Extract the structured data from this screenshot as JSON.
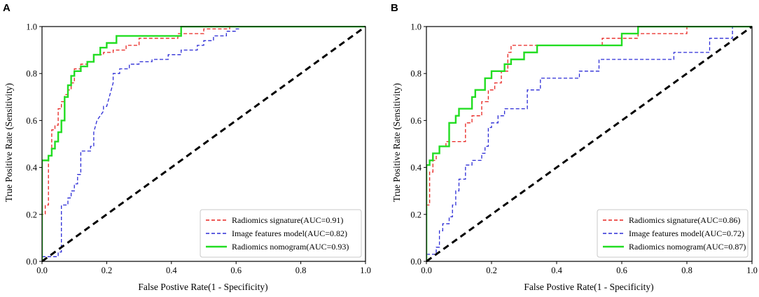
{
  "chart_data": [
    {
      "panel": "A",
      "type": "line",
      "xlabel": "False Postive Rate(1 - Specificity)",
      "ylabel": "True Positive Rate (Sensitivity)",
      "xlim": [
        0,
        1
      ],
      "ylim": [
        0,
        1
      ],
      "xticks": [
        "0.0",
        "0.2",
        "0.4",
        "0.6",
        "0.8",
        "1.0"
      ],
      "yticks": [
        "0.0",
        "0.2",
        "0.4",
        "0.6",
        "0.8",
        "1.0"
      ],
      "legend_position": "lower-right",
      "series": [
        {
          "name": "Radiomics signature(AUC=0.91)",
          "color": "#e8231f",
          "style": "dashed",
          "x": [
            0,
            0,
            0.01,
            0.01,
            0.02,
            0.02,
            0.03,
            0.03,
            0.04,
            0.04,
            0.05,
            0.05,
            0.06,
            0.06,
            0.07,
            0.07,
            0.08,
            0.08,
            0.09,
            0.09,
            0.1,
            0.1,
            0.12,
            0.12,
            0.14,
            0.14,
            0.16,
            0.16,
            0.19,
            0.19,
            0.22,
            0.22,
            0.26,
            0.26,
            0.3,
            0.3,
            0.42,
            0.42,
            0.5,
            0.5,
            0.58,
            0.58,
            1.0
          ],
          "y": [
            0,
            0.2,
            0.2,
            0.24,
            0.24,
            0.45,
            0.45,
            0.56,
            0.56,
            0.58,
            0.58,
            0.65,
            0.65,
            0.68,
            0.68,
            0.71,
            0.71,
            0.73,
            0.73,
            0.76,
            0.76,
            0.82,
            0.82,
            0.84,
            0.84,
            0.85,
            0.85,
            0.88,
            0.88,
            0.89,
            0.89,
            0.9,
            0.9,
            0.92,
            0.92,
            0.95,
            0.95,
            0.97,
            0.97,
            0.99,
            0.99,
            1.0,
            1.0
          ]
        },
        {
          "name": "Image features model(AUC=0.82)",
          "color": "#2b2bd6",
          "style": "dashed",
          "x": [
            0,
            0.05,
            0.05,
            0.06,
            0.06,
            0.08,
            0.08,
            0.09,
            0.09,
            0.1,
            0.1,
            0.11,
            0.11,
            0.12,
            0.12,
            0.15,
            0.15,
            0.16,
            0.16,
            0.17,
            0.19,
            0.19,
            0.2,
            0.22,
            0.22,
            0.24,
            0.24,
            0.27,
            0.27,
            0.3,
            0.3,
            0.34,
            0.34,
            0.39,
            0.39,
            0.43,
            0.43,
            0.48,
            0.48,
            0.5,
            0.5,
            0.53,
            0.53,
            0.57,
            0.57,
            0.6,
            0.6,
            0.61,
            0.61,
            1.0
          ],
          "y": [
            0.02,
            0.02,
            0.04,
            0.04,
            0.24,
            0.24,
            0.27,
            0.27,
            0.3,
            0.3,
            0.33,
            0.33,
            0.37,
            0.37,
            0.47,
            0.47,
            0.49,
            0.49,
            0.55,
            0.6,
            0.64,
            0.66,
            0.66,
            0.76,
            0.8,
            0.8,
            0.82,
            0.82,
            0.84,
            0.84,
            0.85,
            0.85,
            0.86,
            0.86,
            0.88,
            0.88,
            0.9,
            0.9,
            0.92,
            0.92,
            0.94,
            0.94,
            0.96,
            0.96,
            0.98,
            0.98,
            0.99,
            0.99,
            1.0,
            1.0
          ]
        },
        {
          "name": "Radiomics nomogram(AUC=0.93)",
          "color": "#22dd22",
          "style": "solid",
          "x": [
            0,
            0,
            0.02,
            0.02,
            0.03,
            0.03,
            0.04,
            0.04,
            0.05,
            0.05,
            0.06,
            0.06,
            0.07,
            0.07,
            0.08,
            0.08,
            0.09,
            0.09,
            0.1,
            0.1,
            0.12,
            0.12,
            0.14,
            0.14,
            0.16,
            0.16,
            0.18,
            0.18,
            0.2,
            0.2,
            0.23,
            0.23,
            0.43,
            0.43,
            1.0
          ],
          "y": [
            0,
            0.43,
            0.43,
            0.45,
            0.45,
            0.48,
            0.48,
            0.51,
            0.51,
            0.55,
            0.55,
            0.6,
            0.6,
            0.7,
            0.7,
            0.75,
            0.75,
            0.79,
            0.79,
            0.81,
            0.81,
            0.83,
            0.83,
            0.85,
            0.85,
            0.88,
            0.88,
            0.91,
            0.91,
            0.93,
            0.93,
            0.96,
            0.96,
            1.0,
            1.0
          ]
        },
        {
          "name": "chance",
          "color": "#000000",
          "style": "dashed",
          "x": [
            0,
            1
          ],
          "y": [
            0,
            1
          ]
        }
      ]
    },
    {
      "panel": "B",
      "type": "line",
      "xlabel": "False Postive Rate(1 - Specificity)",
      "ylabel": "True Positive Rate (Sensitivity)",
      "xlim": [
        0,
        1
      ],
      "ylim": [
        0,
        1
      ],
      "xticks": [
        "0.0",
        "0.2",
        "0.4",
        "0.6",
        "0.8",
        "1.0"
      ],
      "yticks": [
        "0.0",
        "0.2",
        "0.4",
        "0.6",
        "0.8",
        "1.0"
      ],
      "legend_position": "lower-right",
      "series": [
        {
          "name": "Radiomics signature(AUC=0.86)",
          "color": "#e8231f",
          "style": "dashed",
          "x": [
            0,
            0,
            0.01,
            0.01,
            0.02,
            0.02,
            0.03,
            0.03,
            0.04,
            0.04,
            0.06,
            0.06,
            0.12,
            0.12,
            0.14,
            0.14,
            0.17,
            0.17,
            0.19,
            0.19,
            0.21,
            0.21,
            0.23,
            0.23,
            0.25,
            0.25,
            0.26,
            0.26,
            0.54,
            0.54,
            0.65,
            0.65,
            0.8,
            0.8,
            1.0
          ],
          "y": [
            0,
            0.24,
            0.24,
            0.38,
            0.38,
            0.43,
            0.43,
            0.46,
            0.46,
            0.49,
            0.49,
            0.51,
            0.51,
            0.59,
            0.59,
            0.62,
            0.62,
            0.68,
            0.68,
            0.73,
            0.73,
            0.76,
            0.76,
            0.81,
            0.81,
            0.89,
            0.89,
            0.92,
            0.92,
            0.95,
            0.95,
            0.97,
            0.97,
            1.0,
            1.0
          ]
        },
        {
          "name": "Image features model(AUC=0.72)",
          "color": "#2b2bd6",
          "style": "dashed",
          "x": [
            0,
            0.03,
            0.03,
            0.04,
            0.04,
            0.05,
            0.05,
            0.07,
            0.07,
            0.08,
            0.08,
            0.09,
            0.09,
            0.1,
            0.1,
            0.12,
            0.12,
            0.14,
            0.14,
            0.17,
            0.17,
            0.18,
            0.18,
            0.19,
            0.19,
            0.2,
            0.2,
            0.22,
            0.22,
            0.24,
            0.24,
            0.25,
            0.25,
            0.27,
            0.27,
            0.31,
            0.31,
            0.35,
            0.35,
            0.37,
            0.37,
            0.47,
            0.47,
            0.53,
            0.53,
            0.76,
            0.76,
            0.87,
            0.87,
            0.94,
            0.94,
            1.0
          ],
          "y": [
            0.03,
            0.03,
            0.06,
            0.06,
            0.13,
            0.13,
            0.16,
            0.16,
            0.19,
            0.19,
            0.24,
            0.24,
            0.3,
            0.3,
            0.35,
            0.35,
            0.41,
            0.41,
            0.43,
            0.43,
            0.46,
            0.46,
            0.49,
            0.49,
            0.57,
            0.57,
            0.59,
            0.59,
            0.62,
            0.62,
            0.65,
            0.65,
            0.65,
            0.65,
            0.65,
            0.65,
            0.73,
            0.73,
            0.78,
            0.78,
            0.78,
            0.78,
            0.81,
            0.81,
            0.86,
            0.86,
            0.89,
            0.89,
            0.95,
            0.95,
            1.0,
            1.0
          ]
        },
        {
          "name": "Radiomics nomogram(AUC=0.87)",
          "color": "#22dd22",
          "style": "solid",
          "x": [
            0,
            0,
            0.01,
            0.01,
            0.02,
            0.02,
            0.04,
            0.04,
            0.07,
            0.07,
            0.09,
            0.09,
            0.1,
            0.1,
            0.14,
            0.14,
            0.15,
            0.15,
            0.18,
            0.18,
            0.2,
            0.2,
            0.24,
            0.24,
            0.26,
            0.26,
            0.3,
            0.3,
            0.34,
            0.34,
            0.37,
            0.37,
            0.6,
            0.6,
            0.65,
            0.65,
            1.0
          ],
          "y": [
            0,
            0.41,
            0.41,
            0.43,
            0.43,
            0.46,
            0.46,
            0.49,
            0.49,
            0.59,
            0.59,
            0.62,
            0.62,
            0.65,
            0.65,
            0.7,
            0.7,
            0.73,
            0.73,
            0.78,
            0.78,
            0.81,
            0.81,
            0.84,
            0.84,
            0.86,
            0.86,
            0.89,
            0.89,
            0.92,
            0.92,
            0.92,
            0.92,
            0.97,
            0.97,
            1.0,
            1.0
          ]
        },
        {
          "name": "chance",
          "color": "#000000",
          "style": "dashed",
          "x": [
            0,
            1
          ],
          "y": [
            0,
            1
          ]
        }
      ]
    }
  ]
}
